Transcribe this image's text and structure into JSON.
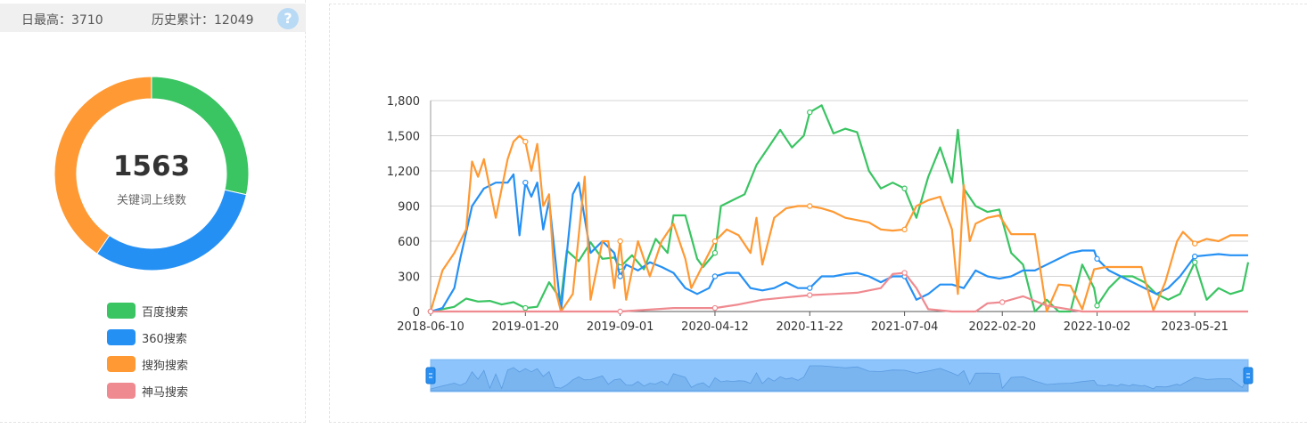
{
  "stats": {
    "max_label": "日最高：3710",
    "total_label": "历史累计：12049",
    "help_glyph": "?"
  },
  "donut": {
    "center_value": "1563",
    "center_label": "关键词上线数",
    "slices": [
      {
        "name": "百度搜索",
        "value": 0.285,
        "color": "#3ac462"
      },
      {
        "name": "360搜索",
        "value": 0.31,
        "color": "#2590f4"
      },
      {
        "name": "搜狗搜索",
        "value": 0.405,
        "color": "#ff9933"
      },
      {
        "name": "神马搜索",
        "value": 0.0,
        "color": "#ef8a90"
      }
    ]
  },
  "legend": [
    {
      "name": "百度搜索",
      "color": "#3ac462"
    },
    {
      "name": "360搜索",
      "color": "#2590f4"
    },
    {
      "name": "搜狗搜索",
      "color": "#ff9933"
    },
    {
      "name": "神马搜索",
      "color": "#ef8a90"
    }
  ],
  "chart_data": {
    "type": "line",
    "x_ticks": [
      "2018-06-10",
      "2019-01-20",
      "2019-09-01",
      "2020-04-12",
      "2020-11-22",
      "2021-07-04",
      "2022-02-20",
      "2022-10-02",
      "2023-05-21"
    ],
    "x_range": [
      "2018-06-10",
      "2023-09-24"
    ],
    "ylim": [
      0,
      1800
    ],
    "y_ticks": [
      "0",
      "300",
      "600",
      "900",
      "1,200",
      "1,500",
      "1,800"
    ],
    "y_tick_values": [
      0,
      300,
      600,
      900,
      1200,
      1500,
      1800
    ],
    "grid": true,
    "datazoom_slider": true,
    "series": [
      {
        "name": "百度搜索",
        "color": "#3ac462",
        "points": [
          [
            "2018-06-10",
            0
          ],
          [
            "2018-08-05",
            40
          ],
          [
            "2018-09-02",
            110
          ],
          [
            "2018-09-30",
            85
          ],
          [
            "2018-10-28",
            90
          ],
          [
            "2018-11-25",
            60
          ],
          [
            "2018-12-23",
            80
          ],
          [
            "2019-01-20",
            30
          ],
          [
            "2019-02-17",
            40
          ],
          [
            "2019-03-17",
            250
          ],
          [
            "2019-04-14",
            100
          ],
          [
            "2019-04-28",
            520
          ],
          [
            "2019-05-26",
            430
          ],
          [
            "2019-06-23",
            590
          ],
          [
            "2019-07-21",
            450
          ],
          [
            "2019-08-18",
            460
          ],
          [
            "2019-09-01",
            380
          ],
          [
            "2019-09-29",
            480
          ],
          [
            "2019-10-27",
            360
          ],
          [
            "2019-11-24",
            620
          ],
          [
            "2019-12-22",
            500
          ],
          [
            "2020-01-05",
            820
          ],
          [
            "2020-02-02",
            820
          ],
          [
            "2020-03-01",
            450
          ],
          [
            "2020-03-15",
            380
          ],
          [
            "2020-04-12",
            500
          ],
          [
            "2020-04-26",
            900
          ],
          [
            "2020-05-24",
            950
          ],
          [
            "2020-06-21",
            1000
          ],
          [
            "2020-07-19",
            1250
          ],
          [
            "2020-08-16",
            1400
          ],
          [
            "2020-09-13",
            1550
          ],
          [
            "2020-10-11",
            1400
          ],
          [
            "2020-11-08",
            1500
          ],
          [
            "2020-11-22",
            1700
          ],
          [
            "2020-12-20",
            1760
          ],
          [
            "2021-01-17",
            1520
          ],
          [
            "2021-02-14",
            1560
          ],
          [
            "2021-03-14",
            1530
          ],
          [
            "2021-04-11",
            1200
          ],
          [
            "2021-05-09",
            1050
          ],
          [
            "2021-06-06",
            1100
          ],
          [
            "2021-07-04",
            1050
          ],
          [
            "2021-08-01",
            800
          ],
          [
            "2021-08-29",
            1150
          ],
          [
            "2021-09-26",
            1400
          ],
          [
            "2021-10-24",
            1100
          ],
          [
            "2021-11-07",
            1550
          ],
          [
            "2021-11-21",
            1050
          ],
          [
            "2021-12-19",
            900
          ],
          [
            "2022-01-16",
            850
          ],
          [
            "2022-02-13",
            870
          ],
          [
            "2022-03-13",
            500
          ],
          [
            "2022-04-10",
            400
          ],
          [
            "2022-05-08",
            0
          ],
          [
            "2022-06-05",
            100
          ],
          [
            "2022-07-03",
            0
          ],
          [
            "2022-07-31",
            0
          ],
          [
            "2022-08-28",
            400
          ],
          [
            "2022-09-25",
            200
          ],
          [
            "2022-10-02",
            50
          ],
          [
            "2022-10-30",
            200
          ],
          [
            "2022-11-27",
            300
          ],
          [
            "2022-12-25",
            300
          ],
          [
            "2023-01-22",
            250
          ],
          [
            "2023-02-19",
            150
          ],
          [
            "2023-03-19",
            100
          ],
          [
            "2023-04-16",
            150
          ],
          [
            "2023-05-21",
            420
          ],
          [
            "2023-06-18",
            100
          ],
          [
            "2023-07-16",
            200
          ],
          [
            "2023-08-13",
            150
          ],
          [
            "2023-09-10",
            180
          ],
          [
            "2023-09-24",
            420
          ]
        ]
      },
      {
        "name": "360搜索",
        "color": "#2590f4",
        "points": [
          [
            "2018-06-10",
            0
          ],
          [
            "2018-07-08",
            30
          ],
          [
            "2018-08-05",
            200
          ],
          [
            "2018-08-19",
            450
          ],
          [
            "2018-09-16",
            900
          ],
          [
            "2018-10-14",
            1050
          ],
          [
            "2018-11-11",
            1100
          ],
          [
            "2018-12-09",
            1100
          ],
          [
            "2018-12-23",
            1170
          ],
          [
            "2019-01-06",
            650
          ],
          [
            "2019-01-20",
            1100
          ],
          [
            "2019-02-03",
            980
          ],
          [
            "2019-02-17",
            1100
          ],
          [
            "2019-03-03",
            700
          ],
          [
            "2019-03-17",
            950
          ],
          [
            "2019-04-14",
            0
          ],
          [
            "2019-05-12",
            1000
          ],
          [
            "2019-05-26",
            1100
          ],
          [
            "2019-06-23",
            500
          ],
          [
            "2019-07-21",
            600
          ],
          [
            "2019-08-18",
            500
          ],
          [
            "2019-09-01",
            300
          ],
          [
            "2019-09-15",
            400
          ],
          [
            "2019-10-13",
            350
          ],
          [
            "2019-11-10",
            420
          ],
          [
            "2019-12-08",
            380
          ],
          [
            "2020-01-05",
            330
          ],
          [
            "2020-02-02",
            200
          ],
          [
            "2020-03-01",
            150
          ],
          [
            "2020-03-29",
            200
          ],
          [
            "2020-04-12",
            300
          ],
          [
            "2020-05-10",
            330
          ],
          [
            "2020-06-07",
            330
          ],
          [
            "2020-07-05",
            200
          ],
          [
            "2020-08-02",
            180
          ],
          [
            "2020-08-30",
            200
          ],
          [
            "2020-09-27",
            250
          ],
          [
            "2020-10-25",
            200
          ],
          [
            "2020-11-22",
            200
          ],
          [
            "2020-12-20",
            300
          ],
          [
            "2021-01-17",
            300
          ],
          [
            "2021-02-14",
            320
          ],
          [
            "2021-03-14",
            330
          ],
          [
            "2021-04-11",
            300
          ],
          [
            "2021-05-09",
            250
          ],
          [
            "2021-06-06",
            300
          ],
          [
            "2021-07-04",
            300
          ],
          [
            "2021-08-01",
            100
          ],
          [
            "2021-08-29",
            150
          ],
          [
            "2021-09-26",
            230
          ],
          [
            "2021-10-24",
            230
          ],
          [
            "2021-11-21",
            200
          ],
          [
            "2021-12-19",
            350
          ],
          [
            "2022-01-16",
            300
          ],
          [
            "2022-02-13",
            280
          ],
          [
            "2022-03-13",
            300
          ],
          [
            "2022-04-10",
            350
          ],
          [
            "2022-05-08",
            350
          ],
          [
            "2022-06-05",
            400
          ],
          [
            "2022-07-03",
            450
          ],
          [
            "2022-07-31",
            500
          ],
          [
            "2022-08-28",
            520
          ],
          [
            "2022-09-25",
            520
          ],
          [
            "2022-10-02",
            450
          ],
          [
            "2022-10-30",
            350
          ],
          [
            "2022-11-27",
            300
          ],
          [
            "2022-12-25",
            250
          ],
          [
            "2023-01-22",
            200
          ],
          [
            "2023-02-19",
            150
          ],
          [
            "2023-03-19",
            200
          ],
          [
            "2023-04-16",
            300
          ],
          [
            "2023-05-21",
            470
          ],
          [
            "2023-06-18",
            480
          ],
          [
            "2023-07-16",
            490
          ],
          [
            "2023-08-13",
            480
          ],
          [
            "2023-09-24",
            480
          ]
        ]
      },
      {
        "name": "搜狗搜索",
        "color": "#ff9933",
        "points": [
          [
            "2018-06-10",
            0
          ],
          [
            "2018-07-08",
            350
          ],
          [
            "2018-08-05",
            500
          ],
          [
            "2018-09-02",
            700
          ],
          [
            "2018-09-16",
            1280
          ],
          [
            "2018-09-30",
            1150
          ],
          [
            "2018-10-14",
            1300
          ],
          [
            "2018-11-11",
            800
          ],
          [
            "2018-12-09",
            1300
          ],
          [
            "2018-12-23",
            1450
          ],
          [
            "2019-01-06",
            1500
          ],
          [
            "2019-01-20",
            1450
          ],
          [
            "2019-02-03",
            1200
          ],
          [
            "2019-02-17",
            1430
          ],
          [
            "2019-03-03",
            900
          ],
          [
            "2019-03-17",
            1000
          ],
          [
            "2019-03-31",
            200
          ],
          [
            "2019-04-14",
            0
          ],
          [
            "2019-05-12",
            150
          ],
          [
            "2019-06-09",
            1150
          ],
          [
            "2019-06-23",
            100
          ],
          [
            "2019-07-21",
            600
          ],
          [
            "2019-08-04",
            600
          ],
          [
            "2019-08-18",
            200
          ],
          [
            "2019-09-01",
            600
          ],
          [
            "2019-09-15",
            100
          ],
          [
            "2019-10-13",
            600
          ],
          [
            "2019-11-10",
            300
          ],
          [
            "2019-12-08",
            600
          ],
          [
            "2020-01-05",
            750
          ],
          [
            "2020-02-02",
            450
          ],
          [
            "2020-02-16",
            200
          ],
          [
            "2020-03-15",
            400
          ],
          [
            "2020-04-12",
            600
          ],
          [
            "2020-05-10",
            700
          ],
          [
            "2020-06-07",
            650
          ],
          [
            "2020-07-05",
            500
          ],
          [
            "2020-07-19",
            800
          ],
          [
            "2020-08-02",
            400
          ],
          [
            "2020-08-30",
            800
          ],
          [
            "2020-09-27",
            880
          ],
          [
            "2020-10-25",
            900
          ],
          [
            "2020-11-22",
            900
          ],
          [
            "2020-12-20",
            880
          ],
          [
            "2021-01-17",
            850
          ],
          [
            "2021-02-14",
            800
          ],
          [
            "2021-03-14",
            780
          ],
          [
            "2021-04-11",
            760
          ],
          [
            "2021-05-09",
            700
          ],
          [
            "2021-06-06",
            690
          ],
          [
            "2021-07-04",
            700
          ],
          [
            "2021-08-01",
            900
          ],
          [
            "2021-08-29",
            950
          ],
          [
            "2021-09-26",
            980
          ],
          [
            "2021-10-24",
            700
          ],
          [
            "2021-11-07",
            150
          ],
          [
            "2021-11-21",
            1080
          ],
          [
            "2021-12-05",
            600
          ],
          [
            "2021-12-19",
            750
          ],
          [
            "2022-01-16",
            800
          ],
          [
            "2022-02-13",
            820
          ],
          [
            "2022-03-13",
            660
          ],
          [
            "2022-04-10",
            660
          ],
          [
            "2022-05-08",
            660
          ],
          [
            "2022-06-05",
            0
          ],
          [
            "2022-07-03",
            230
          ],
          [
            "2022-07-31",
            220
          ],
          [
            "2022-08-28",
            20
          ],
          [
            "2022-09-25",
            360
          ],
          [
            "2022-10-23",
            380
          ],
          [
            "2022-11-20",
            380
          ],
          [
            "2022-12-18",
            380
          ],
          [
            "2023-01-15",
            380
          ],
          [
            "2023-02-12",
            10
          ],
          [
            "2023-03-12",
            250
          ],
          [
            "2023-04-09",
            600
          ],
          [
            "2023-04-23",
            680
          ],
          [
            "2023-05-21",
            580
          ],
          [
            "2023-06-18",
            620
          ],
          [
            "2023-07-16",
            600
          ],
          [
            "2023-08-13",
            650
          ],
          [
            "2023-09-24",
            650
          ]
        ]
      },
      {
        "name": "神马搜索",
        "color": "#ef8a90",
        "points": [
          [
            "2018-06-10",
            0
          ],
          [
            "2019-09-01",
            0
          ],
          [
            "2020-01-05",
            30
          ],
          [
            "2020-04-12",
            30
          ],
          [
            "2020-06-07",
            60
          ],
          [
            "2020-08-02",
            100
          ],
          [
            "2020-09-27",
            120
          ],
          [
            "2020-11-22",
            140
          ],
          [
            "2021-01-17",
            150
          ],
          [
            "2021-03-14",
            160
          ],
          [
            "2021-05-09",
            200
          ],
          [
            "2021-06-06",
            320
          ],
          [
            "2021-07-04",
            330
          ],
          [
            "2021-08-01",
            200
          ],
          [
            "2021-08-29",
            20
          ],
          [
            "2021-10-24",
            0
          ],
          [
            "2021-12-19",
            0
          ],
          [
            "2022-01-16",
            70
          ],
          [
            "2022-02-20",
            80
          ],
          [
            "2022-04-10",
            130
          ],
          [
            "2022-06-05",
            50
          ],
          [
            "2022-08-28",
            0
          ],
          [
            "2023-09-24",
            0
          ]
        ]
      }
    ]
  }
}
